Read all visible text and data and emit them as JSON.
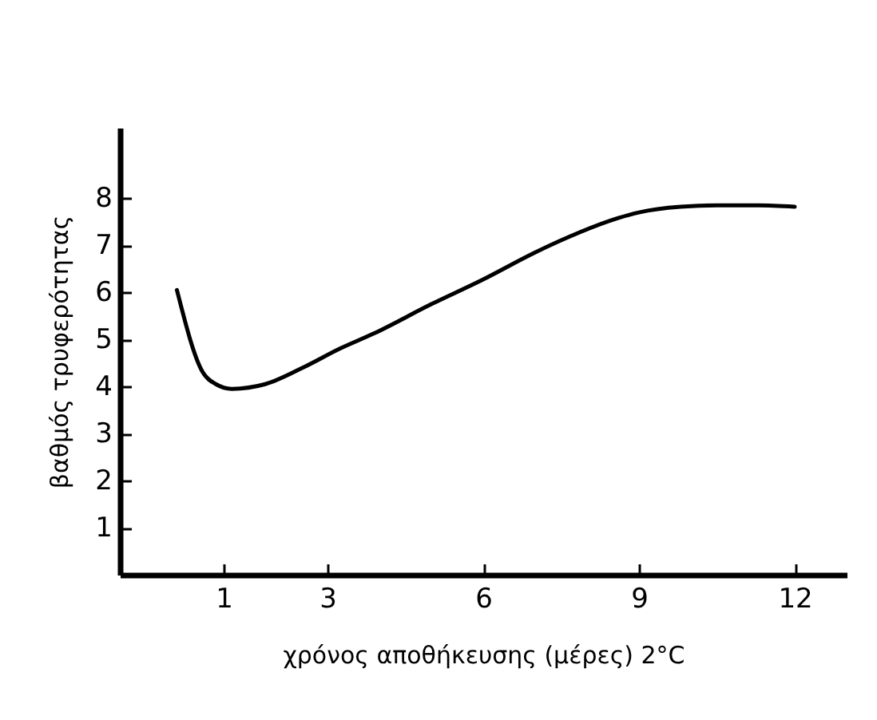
{
  "chart_data": {
    "type": "line",
    "xlabel": "χρόνος αποθήκευσης (μέρες) 2°C",
    "ylabel": "βαθμός τρυφερότητας",
    "x": [
      0.1,
      0.6,
      0.85,
      1.16,
      1.8,
      2.56,
      3.23,
      3.9,
      5,
      5.97,
      7,
      7.65,
      8.6,
      9,
      9.8,
      10.5,
      11.3,
      12
    ],
    "series": [
      {
        "color": "#000000",
        "values": [
          6.05,
          4.3,
          4.05,
          3.95,
          4.05,
          4.42,
          4.8,
          5.13,
          5.75,
          6.26,
          6.85,
          7.18,
          7.58,
          7.7,
          7.82,
          7.85,
          7.85,
          7.82
        ]
      }
    ],
    "xlim": [
      -1,
      13
    ],
    "xticks": [
      1,
      3,
      6,
      9,
      12
    ],
    "ylim": [
      0,
      9.5
    ],
    "yticks": [
      1,
      2,
      3,
      4,
      5,
      6,
      7,
      8
    ],
    "grid": false,
    "legend": false,
    "marker": "none",
    "line_style": "solid"
  }
}
